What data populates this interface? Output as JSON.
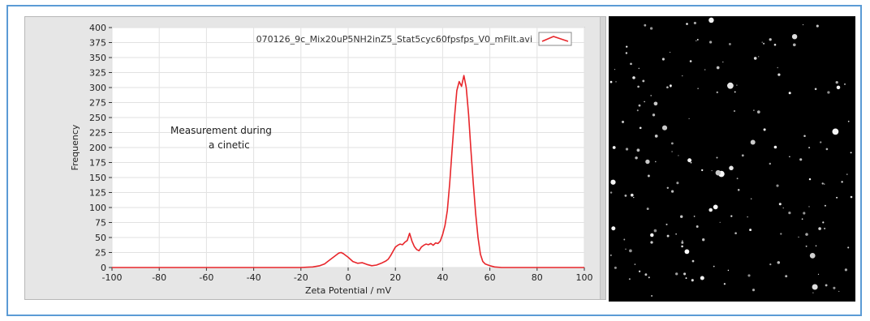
{
  "chart_data": {
    "type": "line",
    "title": "",
    "xlabel": "Zeta Potential / mV",
    "ylabel": "Frequency",
    "xlim": [
      -100,
      100
    ],
    "ylim": [
      0,
      400
    ],
    "x_ticks": [
      -100,
      -80,
      -60,
      -40,
      -20,
      0,
      20,
      40,
      60,
      80,
      100
    ],
    "y_ticks": [
      0,
      25,
      50,
      75,
      100,
      125,
      150,
      175,
      200,
      225,
      250,
      275,
      300,
      325,
      350,
      375,
      400
    ],
    "grid": true,
    "legend_position": "top-right",
    "annotation": [
      "Measurement during",
      "a cinetic"
    ],
    "series": [
      {
        "name": "070126_9c_Mix20uP5NH2inZ5_Stat5cyc60fpsfps_V0_mFilt.avi",
        "color": "#e8262b",
        "x": [
          -100,
          -20,
          -15,
          -12,
          -10,
          -8,
          -6,
          -4,
          -3,
          -2,
          0,
          2,
          4,
          6,
          8,
          10,
          12,
          14,
          16,
          17,
          18,
          19,
          20,
          21,
          22,
          23,
          24,
          25,
          26,
          27,
          28,
          29,
          30,
          31,
          32,
          33,
          34,
          35,
          36,
          37,
          38,
          39,
          40,
          41,
          42,
          43,
          44,
          45,
          46,
          47,
          48,
          49,
          50,
          51,
          52,
          53,
          54,
          55,
          56,
          57,
          58,
          60,
          62,
          65,
          70,
          100
        ],
        "y": [
          0,
          0,
          1,
          3,
          6,
          12,
          18,
          24,
          25,
          23,
          17,
          10,
          7,
          8,
          5,
          3,
          4,
          7,
          11,
          14,
          20,
          27,
          34,
          37,
          39,
          38,
          42,
          45,
          57,
          44,
          35,
          30,
          28,
          34,
          37,
          39,
          38,
          40,
          37,
          41,
          40,
          44,
          55,
          70,
          95,
          140,
          195,
          250,
          295,
          310,
          302,
          320,
          300,
          255,
          195,
          140,
          90,
          50,
          22,
          10,
          6,
          3,
          1,
          0,
          0,
          0
        ]
      }
    ]
  },
  "figure_colors": {
    "frame_border": "#5b9bd5",
    "plot_background": "#ffffff",
    "panel_background": "#e6e6e6",
    "grid": "#e2e2e2",
    "image_background": "#000000"
  }
}
